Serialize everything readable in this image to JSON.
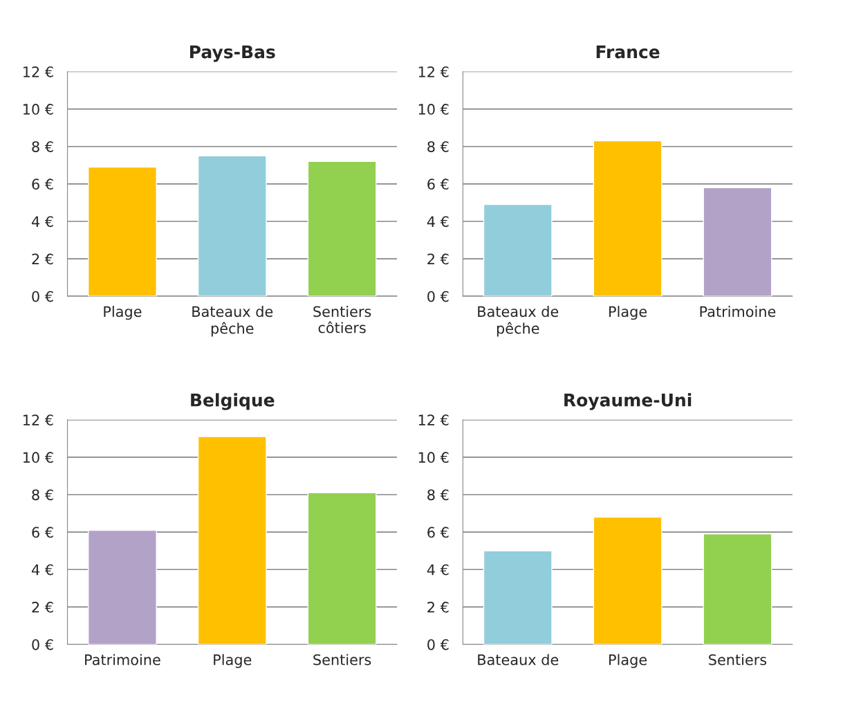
{
  "chart_data": [
    {
      "type": "bar",
      "title": "Pays-Bas",
      "categories": [
        "Plage",
        "Bateaux de\npêche",
        "Sentiers\ncôtiers"
      ],
      "values": [
        6.9,
        7.5,
        7.2
      ],
      "colors": [
        "#ffc000",
        "#92cddc",
        "#92d050"
      ],
      "ylim": [
        0,
        12
      ],
      "yticks": [
        {
          "value": 0,
          "label": "0 €"
        },
        {
          "value": 2,
          "label": "2 €"
        },
        {
          "value": 4,
          "label": "4 €"
        },
        {
          "value": 6,
          "label": "6 €"
        },
        {
          "value": 8,
          "label": "8 €"
        },
        {
          "value": 10,
          "label": "10 €"
        },
        {
          "value": 12,
          "label": "12 €"
        }
      ],
      "grid": "y"
    },
    {
      "type": "bar",
      "title": "France",
      "categories": [
        "Bateaux de\npêche",
        "Plage",
        "Patrimoine"
      ],
      "values": [
        4.9,
        8.3,
        5.8
      ],
      "colors": [
        "#92cddc",
        "#ffc000",
        "#b2a2c7"
      ],
      "ylim": [
        0,
        12
      ],
      "yticks": [
        {
          "value": 0,
          "label": "0 €"
        },
        {
          "value": 2,
          "label": "2 €"
        },
        {
          "value": 4,
          "label": "4 €"
        },
        {
          "value": 6,
          "label": "6 €"
        },
        {
          "value": 8,
          "label": "8 €"
        },
        {
          "value": 10,
          "label": "10 €"
        },
        {
          "value": 12,
          "label": "12 €"
        }
      ],
      "grid": "y"
    },
    {
      "type": "bar",
      "title": "Belgique",
      "categories": [
        "Patrimoine",
        "Plage",
        "Sentiers"
      ],
      "values": [
        6.1,
        11.1,
        8.1
      ],
      "colors": [
        "#b2a2c7",
        "#ffc000",
        "#92d050"
      ],
      "ylim": [
        0,
        12
      ],
      "yticks": [
        {
          "value": 0,
          "label": "0 €"
        },
        {
          "value": 2,
          "label": "2 €"
        },
        {
          "value": 4,
          "label": "4 €"
        },
        {
          "value": 6,
          "label": "6 €"
        },
        {
          "value": 8,
          "label": "8 €"
        },
        {
          "value": 10,
          "label": "10 €"
        },
        {
          "value": 12,
          "label": "12 €"
        }
      ],
      "grid": "y"
    },
    {
      "type": "bar",
      "title": "Royaume-Uni",
      "categories": [
        "Bateaux de",
        "Plage",
        "Sentiers"
      ],
      "values": [
        5.0,
        6.8,
        5.9
      ],
      "colors": [
        "#92cddc",
        "#ffc000",
        "#92d050"
      ],
      "ylim": [
        0,
        12
      ],
      "yticks": [
        {
          "value": 0,
          "label": "0 €"
        },
        {
          "value": 2,
          "label": "2 €"
        },
        {
          "value": 4,
          "label": "4 €"
        },
        {
          "value": 6,
          "label": "6 €"
        },
        {
          "value": 8,
          "label": "8 €"
        },
        {
          "value": 10,
          "label": "10 €"
        },
        {
          "value": 12,
          "label": "12 €"
        }
      ],
      "grid": "y"
    }
  ]
}
